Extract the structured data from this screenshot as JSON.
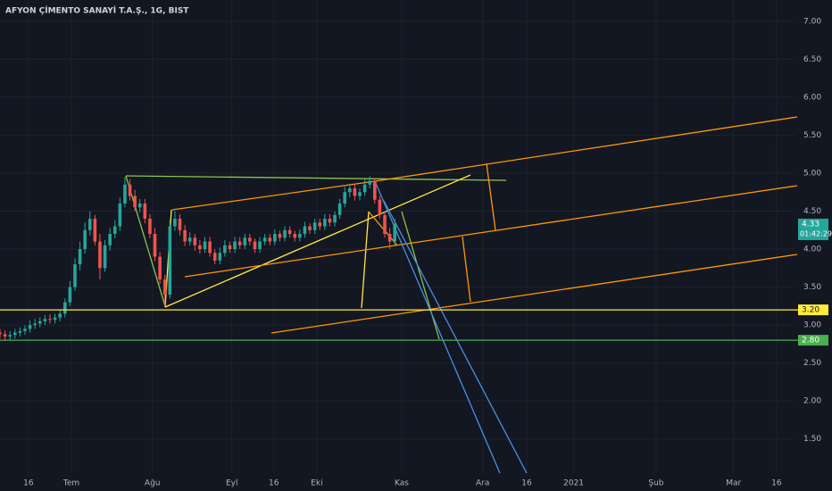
{
  "chart_data": {
    "type": "candlestick",
    "title": "AFYON ÇİMENTO SANAYİ T.A.Ş., 1G, BIST",
    "up_color": "#26a69a",
    "down_color": "#ef5350",
    "x": [
      0,
      1,
      2,
      3,
      4,
      5,
      6,
      7,
      8,
      9,
      10,
      11,
      12,
      13,
      14,
      15,
      16,
      17,
      18,
      19,
      20,
      21,
      22,
      23,
      24,
      25,
      26,
      27,
      28,
      29,
      30,
      31,
      32,
      33,
      34,
      35,
      36,
      37,
      38,
      39,
      40,
      41,
      42,
      43,
      44,
      45,
      46,
      47,
      48,
      49,
      50,
      51,
      52,
      53,
      54,
      55,
      56,
      57,
      58,
      59,
      60,
      61,
      62,
      63,
      64,
      65,
      66,
      67,
      68,
      69,
      70,
      71,
      72,
      73,
      74,
      75,
      76,
      77,
      78,
      79
    ],
    "open": [
      2.9,
      2.88,
      2.85,
      2.87,
      2.9,
      2.92,
      2.95,
      3.0,
      3.02,
      3.05,
      3.08,
      3.07,
      3.1,
      3.15,
      3.3,
      3.5,
      3.8,
      4.0,
      4.25,
      4.4,
      4.1,
      3.75,
      4.05,
      4.2,
      4.3,
      4.6,
      4.85,
      4.7,
      4.55,
      4.6,
      4.4,
      4.2,
      3.9,
      3.6,
      3.4,
      4.3,
      4.4,
      4.25,
      4.1,
      4.15,
      4.05,
      4.0,
      4.1,
      3.95,
      3.85,
      3.95,
      4.05,
      4.0,
      4.1,
      4.05,
      4.15,
      4.1,
      4.0,
      4.1,
      4.15,
      4.1,
      4.2,
      4.15,
      4.25,
      4.2,
      4.15,
      4.2,
      4.3,
      4.25,
      4.35,
      4.3,
      4.4,
      4.35,
      4.45,
      4.6,
      4.75,
      4.8,
      4.7,
      4.75,
      4.85,
      4.9,
      4.65,
      4.45,
      4.2,
      4.1
    ],
    "high": [
      2.95,
      2.93,
      2.92,
      2.95,
      2.97,
      3.0,
      3.06,
      3.08,
      3.1,
      3.13,
      3.14,
      3.15,
      3.2,
      3.35,
      3.58,
      3.88,
      4.1,
      4.35,
      4.5,
      4.45,
      4.2,
      4.12,
      4.28,
      4.38,
      4.68,
      4.95,
      4.92,
      4.78,
      4.66,
      4.66,
      4.46,
      4.28,
      3.96,
      3.66,
      4.38,
      4.5,
      4.46,
      4.32,
      4.22,
      4.2,
      4.12,
      4.16,
      4.16,
      4.0,
      4.02,
      4.12,
      4.1,
      4.16,
      4.16,
      4.2,
      4.2,
      4.14,
      4.16,
      4.2,
      4.2,
      4.26,
      4.24,
      4.3,
      4.3,
      4.24,
      4.26,
      4.36,
      4.34,
      4.4,
      4.4,
      4.46,
      4.46,
      4.5,
      4.66,
      4.82,
      4.86,
      4.86,
      4.8,
      4.92,
      4.96,
      4.94,
      4.7,
      4.5,
      4.28,
      4.4
    ],
    "low": [
      2.82,
      2.8,
      2.8,
      2.82,
      2.85,
      2.87,
      2.9,
      2.95,
      2.97,
      3.0,
      3.02,
      3.02,
      3.05,
      3.1,
      3.25,
      3.45,
      3.72,
      3.94,
      4.18,
      4.05,
      3.6,
      3.7,
      3.98,
      4.14,
      4.24,
      4.55,
      4.64,
      4.5,
      4.48,
      4.34,
      4.14,
      3.84,
      3.54,
      3.25,
      3.35,
      4.24,
      4.18,
      4.04,
      4.05,
      3.98,
      3.94,
      3.95,
      3.9,
      3.8,
      3.8,
      3.9,
      3.95,
      3.95,
      4.0,
      4.0,
      4.05,
      3.95,
      3.95,
      4.05,
      4.05,
      4.05,
      4.1,
      4.1,
      4.15,
      4.1,
      4.1,
      4.15,
      4.2,
      4.2,
      4.25,
      4.25,
      4.3,
      4.3,
      4.4,
      4.55,
      4.68,
      4.64,
      4.64,
      4.7,
      4.8,
      4.6,
      4.4,
      4.15,
      4.0,
      4.05
    ],
    "close": [
      2.88,
      2.85,
      2.87,
      2.9,
      2.92,
      2.95,
      3.0,
      3.02,
      3.05,
      3.08,
      3.07,
      3.1,
      3.15,
      3.3,
      3.5,
      3.8,
      4.0,
      4.25,
      4.4,
      4.1,
      3.75,
      4.05,
      4.2,
      4.3,
      4.6,
      4.85,
      4.7,
      4.55,
      4.6,
      4.4,
      4.2,
      3.9,
      3.6,
      3.4,
      4.3,
      4.4,
      4.25,
      4.1,
      4.15,
      4.05,
      4.0,
      4.1,
      3.95,
      3.85,
      3.95,
      4.05,
      4.0,
      4.1,
      4.05,
      4.15,
      4.1,
      4.0,
      4.1,
      4.15,
      4.1,
      4.2,
      4.15,
      4.25,
      4.2,
      4.15,
      4.2,
      4.3,
      4.25,
      4.35,
      4.3,
      4.4,
      4.35,
      4.45,
      4.6,
      4.75,
      4.8,
      4.7,
      4.75,
      4.85,
      4.9,
      4.65,
      4.45,
      4.2,
      4.1,
      4.33
    ],
    "xlim": [
      0,
      159
    ],
    "xticks": [
      {
        "value": 5.7,
        "label": "16"
      },
      {
        "value": 14.3,
        "label": "Tem"
      },
      {
        "value": 30.5,
        "label": "Ağu"
      },
      {
        "value": 46.4,
        "label": "Eyl"
      },
      {
        "value": 54.8,
        "label": "16"
      },
      {
        "value": 63.4,
        "label": "Eki"
      },
      {
        "value": 80.4,
        "label": "Kas"
      },
      {
        "value": 96.6,
        "label": "Ara"
      },
      {
        "value": 105.4,
        "label": "16"
      },
      {
        "value": 114.8,
        "label": "2021"
      },
      {
        "value": 131.3,
        "label": "Şub"
      },
      {
        "value": 146.8,
        "label": "Mar"
      },
      {
        "value": 155.4,
        "label": "16"
      }
    ],
    "ylim": [
      1.05,
      7.28
    ],
    "yticks": [
      {
        "value": 1.5,
        "label": "1.50"
      },
      {
        "value": 2,
        "label": "2.00"
      },
      {
        "value": 2.5,
        "label": "2.50"
      },
      {
        "value": 3,
        "label": "3.00"
      },
      {
        "value": 3.5,
        "label": "3.50"
      },
      {
        "value": 4,
        "label": "4.00"
      },
      {
        "value": 4.5,
        "label": "4.50"
      },
      {
        "value": 5,
        "label": "5.00"
      },
      {
        "value": 5.5,
        "label": "5.50"
      },
      {
        "value": 6,
        "label": "6.00"
      },
      {
        "value": 6.5,
        "label": "6.50"
      },
      {
        "value": 7,
        "label": "7.00"
      }
    ],
    "grid": true,
    "price_lines": [
      {
        "value": 3.2,
        "label": "3.20",
        "color": "#ffeb3b"
      },
      {
        "value": 2.8,
        "label": "2.80",
        "color": "#4caf50"
      }
    ],
    "last_price": {
      "value": 4.33,
      "label": "4.33",
      "color": "#26a69a"
    },
    "countdown": "01:42:29"
  }
}
